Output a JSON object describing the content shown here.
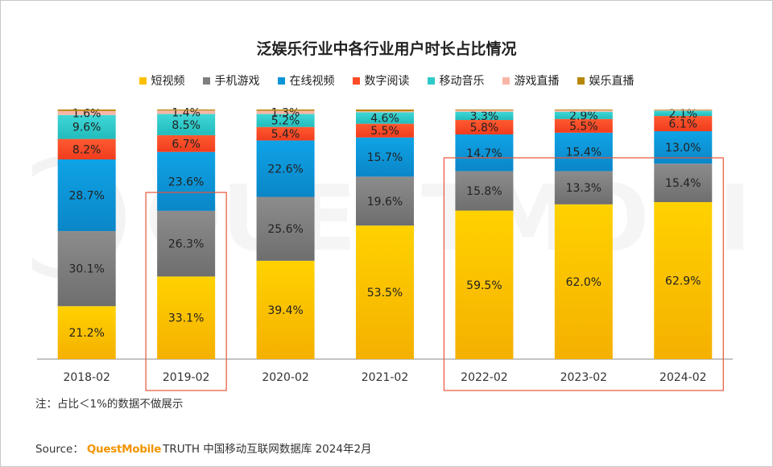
{
  "title": "泛娱乐行业中各行业用户时长占比情况",
  "note": "注：占比＜1%的数据不做展示",
  "source": {
    "label": "Source：",
    "brand": "QuestMobile",
    "rest": "TRUTH 中国移动互联网数据库 2024年2月"
  },
  "watermark": "QUESTMOBILE",
  "colors": {
    "short_video": "#ffc000",
    "mobile_game": "#7f7f7f",
    "online_video": "#0b95d9",
    "digital_reading": "#ff4b26",
    "mobile_music": "#2ec9c9",
    "game_live": "#f7b6a6",
    "ent_live": "#b8860b",
    "highlight_box": "#e8553a"
  },
  "chart_data": {
    "type": "bar",
    "stacked": true,
    "normalized": true,
    "title": "泛娱乐行业中各行业用户时长占比情况",
    "xlabel": "",
    "ylabel": "",
    "ylim": [
      0,
      100
    ],
    "categories": [
      "2018-02",
      "2019-02",
      "2020-02",
      "2021-02",
      "2022-02",
      "2023-02",
      "2024-02"
    ],
    "series": [
      {
        "name": "短视频",
        "color": "#ffc000",
        "values": [
          21.2,
          33.1,
          39.4,
          53.5,
          59.5,
          62.0,
          62.9
        ],
        "labels": [
          "21.2%",
          "33.1%",
          "39.4%",
          "53.5%",
          "59.5%",
          "62.0%",
          "62.9%"
        ]
      },
      {
        "name": "手机游戏",
        "color": "#7f7f7f",
        "values": [
          30.1,
          26.3,
          25.6,
          19.6,
          15.8,
          13.3,
          15.4
        ],
        "labels": [
          "30.1%",
          "26.3%",
          "25.6%",
          "19.6%",
          "15.8%",
          "13.3%",
          "15.4%"
        ]
      },
      {
        "name": "在线视频",
        "color": "#0b95d9",
        "values": [
          28.7,
          23.6,
          22.6,
          15.7,
          14.7,
          15.4,
          13.0
        ],
        "labels": [
          "28.7%",
          "23.6%",
          "22.6%",
          "15.7%",
          "14.7%",
          "15.4%",
          "13.0%"
        ]
      },
      {
        "name": "数字阅读",
        "color": "#ff4b26",
        "values": [
          8.2,
          6.7,
          5.4,
          5.5,
          5.8,
          5.5,
          6.1
        ],
        "labels": [
          "8.2%",
          "6.7%",
          "5.4%",
          "5.5%",
          "5.8%",
          "5.5%",
          "6.1%"
        ]
      },
      {
        "name": "移动音乐",
        "color": "#2ec9c9",
        "values": [
          9.6,
          8.5,
          5.2,
          4.6,
          3.3,
          2.9,
          2.1
        ],
        "labels": [
          "9.6%",
          "8.5%",
          "5.2%",
          "4.6%",
          "3.3%",
          "2.9%",
          "2.1%"
        ]
      },
      {
        "name": "游戏直播",
        "color": "#f7b6a6",
        "values": [
          1.6,
          1.4,
          1.3,
          0.4,
          0.6,
          0.6,
          0.3
        ],
        "labels": [
          "1.6%",
          "1.4%",
          "1.3%",
          "",
          "",
          "",
          ""
        ]
      },
      {
        "name": "娱乐直播",
        "color": "#b8860b",
        "values": [
          0.6,
          0.4,
          0.5,
          0.7,
          0.3,
          0.3,
          0.2
        ],
        "labels": [
          "",
          "",
          "",
          "",
          "",
          "",
          ""
        ]
      }
    ],
    "highlights": [
      {
        "categories": [
          "2019-02"
        ]
      },
      {
        "categories": [
          "2022-02",
          "2023-02",
          "2024-02"
        ]
      }
    ],
    "legend": "top",
    "grid": false
  }
}
